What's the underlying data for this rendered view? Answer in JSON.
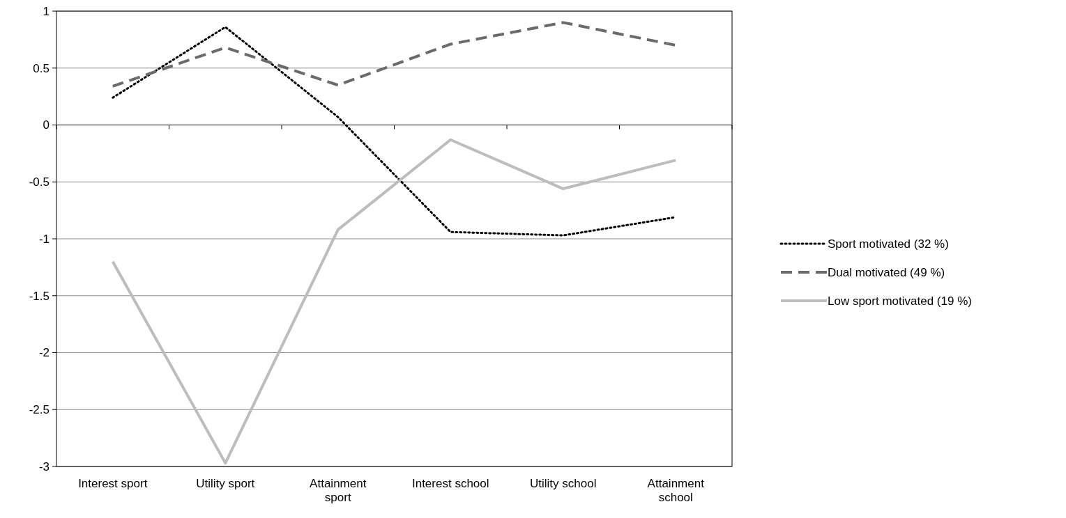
{
  "chart_data": {
    "type": "line",
    "categories": [
      "Interest sport",
      "Utility sport",
      "Attainment sport",
      "Interest school",
      "Utility school",
      "Attainment school"
    ],
    "series": [
      {
        "name": "Sport motivated (32 %)",
        "color": "#000000",
        "line_style": "dotted",
        "values": [
          0.24,
          0.86,
          0.07,
          -0.94,
          -0.97,
          -0.81
        ]
      },
      {
        "name": "Dual motivated (49 %)",
        "color": "#6b6b6b",
        "line_style": "dashed",
        "values": [
          0.34,
          0.68,
          0.35,
          0.71,
          0.9,
          0.7
        ]
      },
      {
        "name": "Low sport motivated (19 %)",
        "color": "#bdbdbd",
        "line_style": "solid",
        "values": [
          -1.2,
          -2.97,
          -0.92,
          -0.13,
          -0.56,
          -0.31
        ]
      }
    ],
    "ylim": [
      -3,
      1
    ],
    "yticks": [
      -3,
      -2.5,
      -2,
      -1.5,
      -1,
      -0.5,
      0,
      0.5,
      1
    ],
    "grid": "y",
    "legend": "right"
  }
}
